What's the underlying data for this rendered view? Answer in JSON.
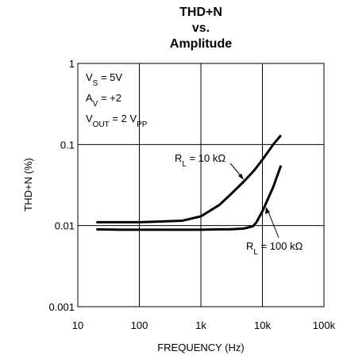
{
  "chart_data": {
    "type": "line",
    "title": [
      "THD+N",
      "vs.",
      "Amplitude"
    ],
    "x_label": "FREQUENCY (Hz)",
    "y_label": "THD+N (%)",
    "log_x": true,
    "log_y": true,
    "grid": true,
    "xlim": [
      10,
      100000
    ],
    "xticks": [
      10,
      100,
      {
        "value": 1000,
        "label": "1k"
      },
      {
        "value": 10000,
        "label": "10k"
      },
      {
        "value": 100000,
        "label": "100k"
      }
    ],
    "ylim": [
      0.001,
      1
    ],
    "yticks": [
      0.001,
      0.01,
      0.1,
      1
    ],
    "annotations": [
      [
        {
          "text": "V"
        },
        {
          "text": "S",
          "sub": true
        },
        {
          "text": " = 5V"
        }
      ],
      [
        {
          "text": "A"
        },
        {
          "text": "V",
          "sub": true
        },
        {
          "text": " = +2"
        }
      ],
      [
        {
          "text": "V"
        },
        {
          "text": "OUT",
          "sub": true
        },
        {
          "text": " = 2 V"
        },
        {
          "text": "PP",
          "sub": true
        }
      ]
    ],
    "x": [
      20,
      50,
      100,
      200,
      500,
      1000,
      2000,
      3000,
      5000,
      7000,
      8000,
      10000,
      15000,
      20000
    ],
    "series": [
      {
        "name": [
          {
            "text": "R"
          },
          {
            "text": "L",
            "sub": true
          },
          {
            "text": " = 10 kΩ"
          }
        ],
        "color": "#000000",
        "values": [
          0.011,
          0.011,
          0.011,
          0.0112,
          0.0115,
          0.013,
          0.018,
          0.024,
          0.035,
          0.046,
          0.052,
          0.065,
          0.1,
          0.13
        ]
      },
      {
        "name": [
          {
            "text": "R"
          },
          {
            "text": "L",
            "sub": true
          },
          {
            "text": " = 100 kΩ"
          }
        ],
        "color": "#000000",
        "values": [
          0.009,
          0.0089,
          0.0089,
          0.0089,
          0.0089,
          0.0089,
          0.009,
          0.009,
          0.0092,
          0.0098,
          0.011,
          0.015,
          0.03,
          0.055
        ]
      }
    ]
  }
}
